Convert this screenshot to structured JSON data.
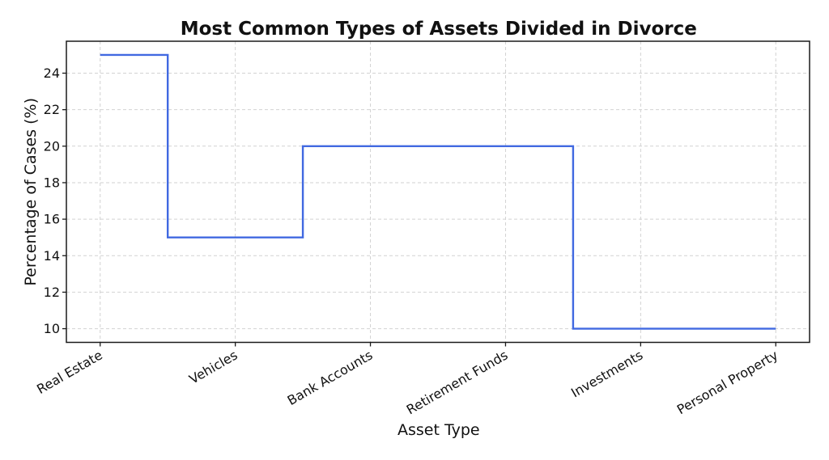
{
  "chart_data": {
    "type": "line",
    "subtype": "step-mid",
    "title": "Most Common Types of Assets Divided in Divorce",
    "xlabel": "Asset Type",
    "ylabel": "Percentage of Cases (%)",
    "categories": [
      "Real Estate",
      "Vehicles",
      "Bank Accounts",
      "Retirement Funds",
      "Investments",
      "Personal Property"
    ],
    "values": [
      25,
      15,
      20,
      20,
      10,
      10
    ],
    "yticks": [
      10,
      12,
      14,
      16,
      18,
      20,
      22,
      24
    ],
    "ylim": [
      9.25,
      25.75
    ],
    "xlim": [
      -0.25,
      5.25
    ],
    "grid": true,
    "legend": "none",
    "x_tick_rotation_deg": 30,
    "colors": {
      "line": "#4169E1",
      "grid": "#d2d2d2",
      "frame": "#1a1a1a",
      "text": "#111111",
      "background": "#ffffff"
    }
  }
}
